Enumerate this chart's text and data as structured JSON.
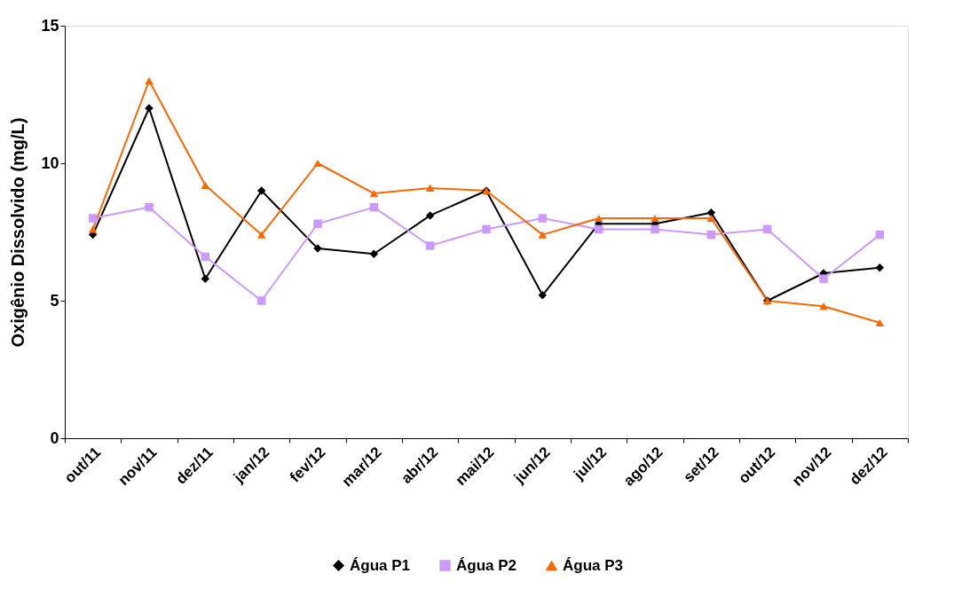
{
  "chart_data": {
    "type": "line",
    "ylabel": "Oxigênio Dissolvido (mg/L)",
    "categories": [
      "out/11",
      "nov/11",
      "dez/11",
      "jan/12",
      "fev/12",
      "mar/12",
      "abr/12",
      "mai/12",
      "jun/12",
      "jul/12",
      "ago/12",
      "set/12",
      "out/12",
      "nov/12",
      "dez/12"
    ],
    "series": [
      {
        "name": "Água P1",
        "color": "#000000",
        "marker": "diamond",
        "values": [
          7.4,
          12.0,
          5.8,
          9.0,
          6.9,
          6.7,
          8.1,
          9.0,
          5.2,
          7.8,
          7.8,
          8.2,
          5.0,
          6.0,
          6.2
        ]
      },
      {
        "name": "Água P2",
        "color": "#cc99ff",
        "marker": "square",
        "values": [
          8.0,
          8.4,
          6.6,
          5.0,
          7.8,
          8.4,
          7.0,
          7.6,
          8.0,
          7.6,
          7.6,
          7.4,
          7.6,
          5.8,
          7.4
        ]
      },
      {
        "name": "Água P3",
        "color": "#ff6600",
        "marker": "triangle",
        "values": [
          7.6,
          13.0,
          9.2,
          7.4,
          10.0,
          8.9,
          9.1,
          9.0,
          7.4,
          8.0,
          8.0,
          8.0,
          5.0,
          4.8,
          4.2
        ]
      }
    ],
    "ylim": [
      0,
      15
    ],
    "yticks": [
      0,
      5,
      10,
      15
    ],
    "grid": false,
    "legend": "bottom",
    "line_style": "solid"
  }
}
